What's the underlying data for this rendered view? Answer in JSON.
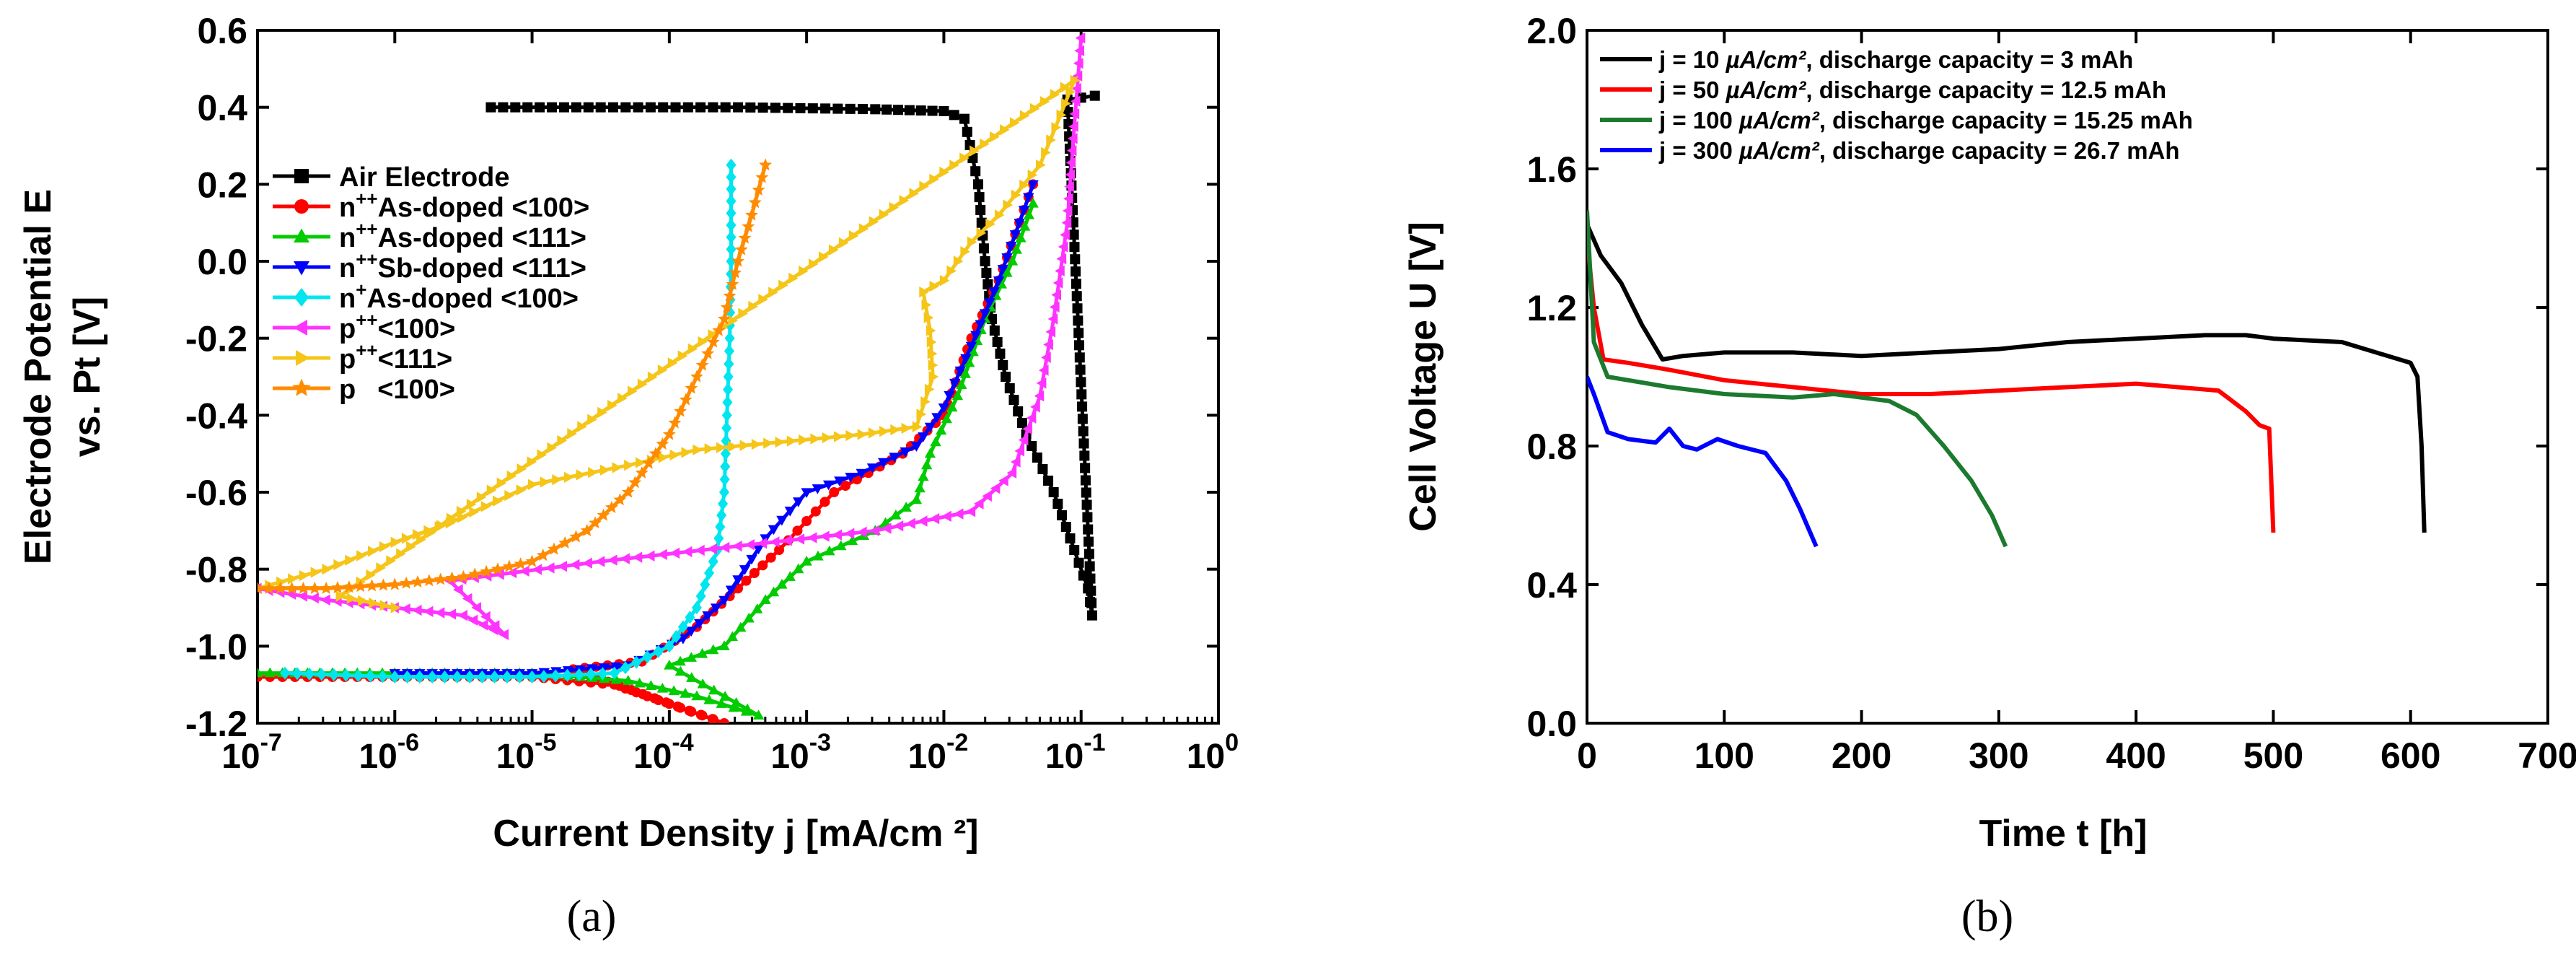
{
  "chart_data": [
    {
      "id": "a",
      "type": "line",
      "caption": "(a)",
      "xlabel": "Current Density j [mA/cm ²]",
      "ylabel_line1": "Electrode Potential E",
      "ylabel_line2": "vs. Pt [V]",
      "xscale": "log",
      "xlim_exp": [
        -7,
        0
      ],
      "ylim": [
        -1.2,
        0.6
      ],
      "x_ticks_exp": [
        -7,
        -6,
        -5,
        -4,
        -3,
        -2,
        -1,
        0
      ],
      "x_tick_base": "10",
      "y_ticks": [
        "0.6",
        "0.4",
        "0.2",
        "0.0",
        "-0.2",
        "-0.4",
        "-0.6",
        "-0.8",
        "-1.0",
        "-1.2"
      ],
      "legend_position": "upper-left",
      "legend": [
        {
          "base": "Air Electrode",
          "sup": "",
          "rest": ""
        },
        {
          "base": "n",
          "sup": "++",
          "rest": "As-doped <100>"
        },
        {
          "base": "n",
          "sup": "++",
          "rest": "As-doped <111>"
        },
        {
          "base": "n",
          "sup": "++",
          "rest": "Sb-doped <111>"
        },
        {
          "base": "n",
          "sup": "+",
          "rest": "As-doped <100>"
        },
        {
          "base": "p",
          "sup": "++",
          "rest": "<100>"
        },
        {
          "base": "p",
          "sup": "++",
          "rest": "<111>"
        },
        {
          "base": "p",
          "sup": "",
          "rest": "<100>"
        }
      ],
      "series": [
        {
          "name": "Air Electrode",
          "color": "#000000",
          "marker": "square",
          "points": [
            [
              -5.3,
              0.4
            ],
            [
              -4.5,
              0.4
            ],
            [
              -3.5,
              0.4
            ],
            [
              -2.5,
              0.395
            ],
            [
              -2.0,
              0.39
            ],
            [
              -1.85,
              0.37
            ],
            [
              -1.75,
              0.2
            ],
            [
              -1.7,
              0.0
            ],
            [
              -1.65,
              -0.15
            ],
            [
              -1.55,
              -0.3
            ],
            [
              -1.4,
              -0.45
            ],
            [
              -1.2,
              -0.6
            ],
            [
              -1.05,
              -0.75
            ],
            [
              -0.95,
              -0.85
            ],
            [
              -0.92,
              -0.92
            ],
            [
              -1.1,
              0.42
            ],
            [
              -0.9,
              0.43
            ]
          ]
        },
        {
          "name": "n++ As-doped <100>",
          "color": "#ff0000",
          "marker": "circle",
          "points": [
            [
              -7.0,
              -1.08
            ],
            [
              -6.0,
              -1.08
            ],
            [
              -5.0,
              -1.08
            ],
            [
              -4.4,
              -1.1
            ],
            [
              -4.0,
              -1.15
            ],
            [
              -3.6,
              -1.2
            ],
            [
              -4.7,
              -1.06
            ],
            [
              -4.2,
              -1.04
            ],
            [
              -3.8,
              -0.95
            ],
            [
              -3.5,
              -0.85
            ],
            [
              -3.2,
              -0.75
            ],
            [
              -2.8,
              -0.6
            ],
            [
              -2.3,
              -0.5
            ],
            [
              -2.0,
              -0.4
            ],
            [
              -1.8,
              -0.2
            ],
            [
              -1.6,
              -0.05
            ],
            [
              -1.45,
              0.1
            ],
            [
              -1.35,
              0.2
            ]
          ]
        },
        {
          "name": "n++ As-doped <111>",
          "color": "#00cc00",
          "marker": "triangle-up",
          "points": [
            [
              -7.0,
              -1.07
            ],
            [
              -6.0,
              -1.07
            ],
            [
              -5.0,
              -1.07
            ],
            [
              -4.3,
              -1.09
            ],
            [
              -3.8,
              -1.13
            ],
            [
              -3.35,
              -1.18
            ],
            [
              -4.0,
              -1.05
            ],
            [
              -3.6,
              -1.0
            ],
            [
              -3.3,
              -0.88
            ],
            [
              -3.0,
              -0.78
            ],
            [
              -2.5,
              -0.7
            ],
            [
              -2.2,
              -0.62
            ],
            [
              -2.1,
              -0.5
            ],
            [
              -1.9,
              -0.35
            ],
            [
              -1.7,
              -0.15
            ],
            [
              -1.5,
              0.0
            ],
            [
              -1.35,
              0.15
            ]
          ]
        },
        {
          "name": "n++ Sb-doped <111>",
          "color": "#0000ff",
          "marker": "triangle-down",
          "points": [
            [
              -6.0,
              -1.07
            ],
            [
              -5.0,
              -1.07
            ],
            [
              -4.3,
              -1.05
            ],
            [
              -3.9,
              -0.98
            ],
            [
              -3.6,
              -0.88
            ],
            [
              -3.3,
              -0.72
            ],
            [
              -3.0,
              -0.6
            ],
            [
              -2.6,
              -0.55
            ],
            [
              -2.2,
              -0.48
            ],
            [
              -2.0,
              -0.38
            ],
            [
              -1.8,
              -0.22
            ],
            [
              -1.6,
              -0.05
            ],
            [
              -1.45,
              0.1
            ],
            [
              -1.35,
              0.2
            ]
          ]
        },
        {
          "name": "n+ As-doped <100>",
          "color": "#00e5ee",
          "marker": "diamond",
          "points": [
            [
              -6.8,
              -1.07
            ],
            [
              -6.0,
              -1.08
            ],
            [
              -5.0,
              -1.08
            ],
            [
              -4.4,
              -1.07
            ],
            [
              -4.0,
              -1.0
            ],
            [
              -3.8,
              -0.9
            ],
            [
              -3.65,
              -0.75
            ],
            [
              -3.6,
              -0.6
            ],
            [
              -3.58,
              -0.4
            ],
            [
              -3.56,
              -0.2
            ],
            [
              -3.55,
              0.0
            ],
            [
              -3.55,
              0.25
            ]
          ]
        },
        {
          "name": "p++ <100>",
          "color": "#ff33ff",
          "marker": "triangle-left",
          "points": [
            [
              -7.0,
              -0.85
            ],
            [
              -6.5,
              -0.88
            ],
            [
              -6.0,
              -0.9
            ],
            [
              -5.5,
              -0.92
            ],
            [
              -5.2,
              -0.97
            ],
            [
              -5.6,
              -0.83
            ],
            [
              -4.5,
              -0.78
            ],
            [
              -3.5,
              -0.74
            ],
            [
              -2.5,
              -0.7
            ],
            [
              -1.8,
              -0.65
            ],
            [
              -1.5,
              -0.55
            ],
            [
              -1.3,
              -0.35
            ],
            [
              -1.2,
              -0.15
            ],
            [
              -1.1,
              0.1
            ],
            [
              -1.05,
              0.35
            ],
            [
              -1.0,
              0.58
            ]
          ]
        },
        {
          "name": "p++ <111>",
          "color": "#f5c518",
          "marker": "triangle-right",
          "points": [
            [
              -7.0,
              -0.85
            ],
            [
              -6.5,
              -0.8
            ],
            [
              -6.0,
              -0.73
            ],
            [
              -5.6,
              -0.68
            ],
            [
              -5.0,
              -0.58
            ],
            [
              -4.3,
              -0.53
            ],
            [
              -3.8,
              -0.49
            ],
            [
              -3.2,
              -0.47
            ],
            [
              -2.6,
              -0.45
            ],
            [
              -2.2,
              -0.43
            ],
            [
              -2.08,
              -0.3
            ],
            [
              -2.1,
              -0.18
            ],
            [
              -2.15,
              -0.08
            ],
            [
              -2.0,
              -0.05
            ],
            [
              -1.8,
              0.05
            ],
            [
              -1.6,
              0.12
            ],
            [
              -1.3,
              0.25
            ],
            [
              -1.15,
              0.38
            ],
            [
              -1.05,
              0.47
            ],
            [
              -6.4,
              -0.87
            ],
            [
              -6.0,
              -0.9
            ]
          ]
        },
        {
          "name": "p <100>",
          "color": "#ff8c00",
          "marker": "star",
          "points": [
            [
              -7.0,
              -0.85
            ],
            [
              -6.5,
              -0.85
            ],
            [
              -6.0,
              -0.84
            ],
            [
              -5.5,
              -0.82
            ],
            [
              -5.0,
              -0.78
            ],
            [
              -4.6,
              -0.7
            ],
            [
              -4.3,
              -0.6
            ],
            [
              -4.0,
              -0.45
            ],
            [
              -3.8,
              -0.3
            ],
            [
              -3.6,
              -0.15
            ],
            [
              -3.5,
              0.0
            ],
            [
              -3.4,
              0.12
            ],
            [
              -3.3,
              0.25
            ]
          ]
        }
      ]
    },
    {
      "id": "b",
      "type": "line",
      "caption": "(b)",
      "xlabel": "Time t [h]",
      "ylabel": "Cell Voltage U [V]",
      "xlim": [
        0,
        700
      ],
      "ylim": [
        0.0,
        2.0
      ],
      "x_ticks": [
        "0",
        "100",
        "200",
        "300",
        "400",
        "500",
        "600",
        "700"
      ],
      "y_ticks": [
        "2.0",
        "1.6",
        "1.2",
        "0.8",
        "0.4",
        "0.0"
      ],
      "legend_position": "top-left",
      "legend": [
        {
          "j": "j = 10",
          "rest": ", discharge capacity = 3 mAh"
        },
        {
          "j": "j = 50",
          "rest": ", discharge capacity = 12.5 mAh"
        },
        {
          "j": "j = 100",
          "rest": ", discharge capacity = 15.25 mAh"
        },
        {
          "j": "j = 300",
          "rest": ", discharge capacity = 26.7 mAh"
        }
      ],
      "unit_label": "µA/cm²",
      "series": [
        {
          "name": "j = 10",
          "color": "#000000",
          "points": [
            [
              0,
              1.44
            ],
            [
              10,
              1.35
            ],
            [
              25,
              1.27
            ],
            [
              40,
              1.15
            ],
            [
              55,
              1.05
            ],
            [
              70,
              1.06
            ],
            [
              100,
              1.07
            ],
            [
              150,
              1.07
            ],
            [
              200,
              1.06
            ],
            [
              250,
              1.07
            ],
            [
              300,
              1.08
            ],
            [
              350,
              1.1
            ],
            [
              400,
              1.11
            ],
            [
              450,
              1.12
            ],
            [
              480,
              1.12
            ],
            [
              500,
              1.11
            ],
            [
              550,
              1.1
            ],
            [
              600,
              1.04
            ],
            [
              605,
              1.0
            ],
            [
              608,
              0.8
            ],
            [
              610,
              0.55
            ]
          ]
        },
        {
          "name": "j = 50",
          "color": "#ff0000",
          "points": [
            [
              0,
              1.4
            ],
            [
              5,
              1.2
            ],
            [
              12,
              1.05
            ],
            [
              30,
              1.04
            ],
            [
              60,
              1.02
            ],
            [
              100,
              0.99
            ],
            [
              150,
              0.97
            ],
            [
              200,
              0.95
            ],
            [
              250,
              0.95
            ],
            [
              300,
              0.96
            ],
            [
              350,
              0.97
            ],
            [
              400,
              0.98
            ],
            [
              430,
              0.97
            ],
            [
              460,
              0.96
            ],
            [
              480,
              0.9
            ],
            [
              490,
              0.86
            ],
            [
              497,
              0.85
            ],
            [
              500,
              0.55
            ]
          ]
        },
        {
          "name": "j = 100",
          "color": "#1b7a2e",
          "points": [
            [
              0,
              1.48
            ],
            [
              5,
              1.1
            ],
            [
              15,
              1.0
            ],
            [
              30,
              0.99
            ],
            [
              60,
              0.97
            ],
            [
              100,
              0.95
            ],
            [
              150,
              0.94
            ],
            [
              180,
              0.95
            ],
            [
              200,
              0.94
            ],
            [
              220,
              0.93
            ],
            [
              240,
              0.89
            ],
            [
              260,
              0.8
            ],
            [
              280,
              0.7
            ],
            [
              295,
              0.6
            ],
            [
              305,
              0.51
            ]
          ]
        },
        {
          "name": "j = 300",
          "color": "#0000ff",
          "points": [
            [
              0,
              1.0
            ],
            [
              5,
              0.95
            ],
            [
              15,
              0.84
            ],
            [
              30,
              0.82
            ],
            [
              50,
              0.81
            ],
            [
              60,
              0.85
            ],
            [
              70,
              0.8
            ],
            [
              80,
              0.79
            ],
            [
              95,
              0.82
            ],
            [
              110,
              0.8
            ],
            [
              130,
              0.78
            ],
            [
              145,
              0.7
            ],
            [
              155,
              0.62
            ],
            [
              167,
              0.51
            ]
          ]
        }
      ]
    }
  ]
}
